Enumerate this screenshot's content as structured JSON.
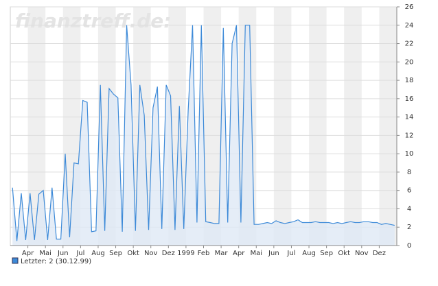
{
  "chart_data": {
    "type": "line",
    "watermark": "finanztreff.de:",
    "categories": [
      null,
      null,
      null,
      null,
      "Apr",
      null,
      null,
      null,
      "Mai",
      null,
      null,
      null,
      "Jun",
      null,
      null,
      null,
      "Jul",
      null,
      null,
      null,
      "Aug",
      null,
      null,
      null,
      "Sep",
      null,
      null,
      null,
      "Okt",
      null,
      null,
      null,
      "Nov",
      null,
      null,
      null,
      "Dez",
      null,
      null,
      null,
      "1999",
      null,
      null,
      null,
      "Feb",
      null,
      null,
      null,
      "Mar",
      null,
      null,
      null,
      "Apr",
      null,
      null,
      null,
      "Mai",
      null,
      null,
      null,
      "Jun",
      null,
      null,
      null,
      "Jul",
      null,
      null,
      null,
      "Aug",
      null,
      null,
      null,
      "Sep",
      null,
      null,
      null,
      "Okt",
      null,
      null,
      null,
      "Nov",
      null,
      null,
      null,
      "Dez",
      null,
      null,
      null
    ],
    "series": [
      {
        "name": "Letzter: 2 (30.12.99)",
        "color": "#3d8ad8",
        "fill": "#dfe8f5",
        "values": [
          6.3,
          0.5,
          5.7,
          0.6,
          5.7,
          0.6,
          5.6,
          6,
          0.6,
          6.3,
          0.7,
          0.7,
          10,
          0.9,
          9,
          8.9,
          15.8,
          15.6,
          1.5,
          1.6,
          17.5,
          1.6,
          17.1,
          16.5,
          16.1,
          1.5,
          24,
          17.5,
          1.6,
          17.5,
          14.2,
          1.7,
          15,
          17.3,
          1.8,
          17.5,
          16.3,
          1.7,
          15.2,
          1.8,
          14.7,
          24,
          2.5,
          24,
          2.6,
          2.5,
          2.4,
          2.4,
          23.7,
          2.5,
          22,
          24,
          2.5,
          24,
          24,
          2.3,
          2.3,
          2.4,
          2.5,
          2.4,
          2.7,
          2.5,
          2.4,
          2.5,
          2.6,
          2.8,
          2.5,
          2.5,
          2.5,
          2.6,
          2.5,
          2.5,
          2.5,
          2.4,
          2.5,
          2.4,
          2.5,
          2.6,
          2.5,
          2.5,
          2.6,
          2.6,
          2.5,
          2.5,
          2.3,
          2.4,
          2.3,
          2.2
        ]
      }
    ],
    "ylim": [
      0,
      26
    ],
    "yticks": [
      0,
      2,
      4,
      6,
      8,
      10,
      12,
      14,
      16,
      18,
      20,
      22,
      24,
      26
    ],
    "grid": true
  }
}
